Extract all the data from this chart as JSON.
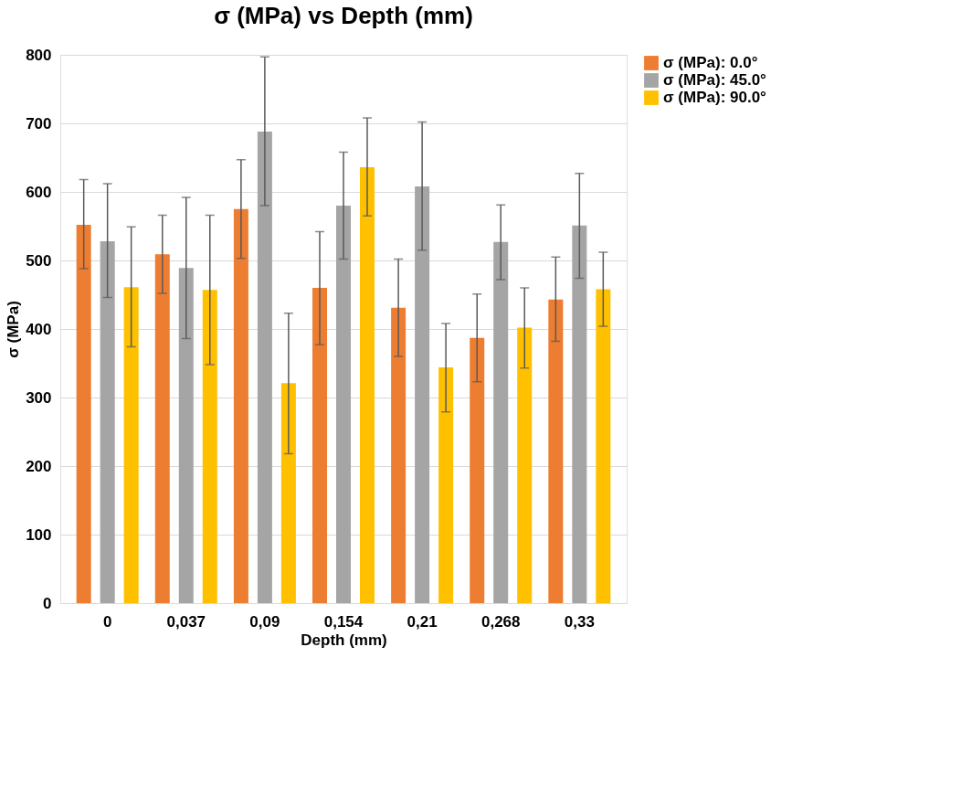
{
  "chart_data": {
    "type": "bar",
    "title": "σ (MPa) vs Depth (mm)",
    "xlabel": "Depth (mm)",
    "ylabel": "σ (MPa)",
    "categories": [
      "0",
      "0,037",
      "0,09",
      "0,154",
      "0,21",
      "0,268",
      "0,33"
    ],
    "series": [
      {
        "name": "σ (MPa): 0.0°",
        "color": "#ed7d31",
        "values": [
          552,
          509,
          575,
          460,
          431,
          387,
          443
        ],
        "errors": [
          [
            488,
            618
          ],
          [
            452,
            566
          ],
          [
            503,
            647
          ],
          [
            377,
            542
          ],
          [
            360,
            502
          ],
          [
            323,
            451
          ],
          [
            382,
            505
          ]
        ]
      },
      {
        "name": "σ (MPa): 45.0°",
        "color": "#a5a5a5",
        "values": [
          528,
          489,
          688,
          580,
          608,
          527,
          551
        ],
        "errors": [
          [
            446,
            612
          ],
          [
            386,
            592
          ],
          [
            580,
            797
          ],
          [
            502,
            658
          ],
          [
            515,
            702
          ],
          [
            472,
            581
          ],
          [
            474,
            627
          ]
        ]
      },
      {
        "name": "σ (MPa): 90.0°",
        "color": "#ffc000",
        "values": [
          461,
          457,
          321,
          636,
          344,
          402,
          458
        ],
        "errors": [
          [
            374,
            549
          ],
          [
            348,
            566
          ],
          [
            218,
            423
          ],
          [
            565,
            708
          ],
          [
            279,
            408
          ],
          [
            343,
            460
          ],
          [
            404,
            512
          ]
        ]
      }
    ],
    "ylim": [
      0,
      800
    ],
    "yticks": [
      0,
      100,
      200,
      300,
      400,
      500,
      600,
      700,
      800
    ],
    "grid": "y",
    "legend": "right"
  }
}
